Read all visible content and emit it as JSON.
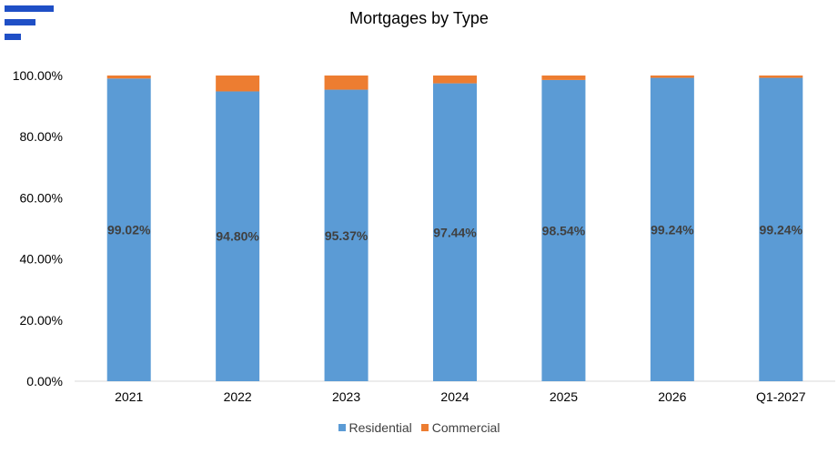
{
  "chart_data": {
    "type": "bar",
    "stacked": true,
    "title": "Mortgages by Type",
    "categories": [
      "2021",
      "2022",
      "2023",
      "2024",
      "2025",
      "2026",
      "Q1-2027"
    ],
    "series": [
      {
        "name": "Residential",
        "color": "#5B9BD5",
        "values": [
          99.02,
          94.8,
          95.37,
          97.44,
          98.54,
          99.24,
          99.24
        ],
        "labels": [
          "99.02%",
          "94.80%",
          "95.37%",
          "97.44%",
          "98.54%",
          "99.24%",
          "99.24%"
        ]
      },
      {
        "name": "Commercial",
        "color": "#ED7D31",
        "values": [
          0.98,
          5.2,
          4.63,
          2.56,
          1.46,
          0.76,
          0.76
        ]
      }
    ],
    "ylim": [
      0,
      100
    ],
    "yticks": [
      "0.00%",
      "20.00%",
      "40.00%",
      "60.00%",
      "80.00%",
      "100.00%"
    ],
    "grid": false,
    "legend_position": "bottom"
  },
  "brand": {
    "logo_color": "#1F4FC6",
    "logo_icon": "bars-logo-icon"
  }
}
